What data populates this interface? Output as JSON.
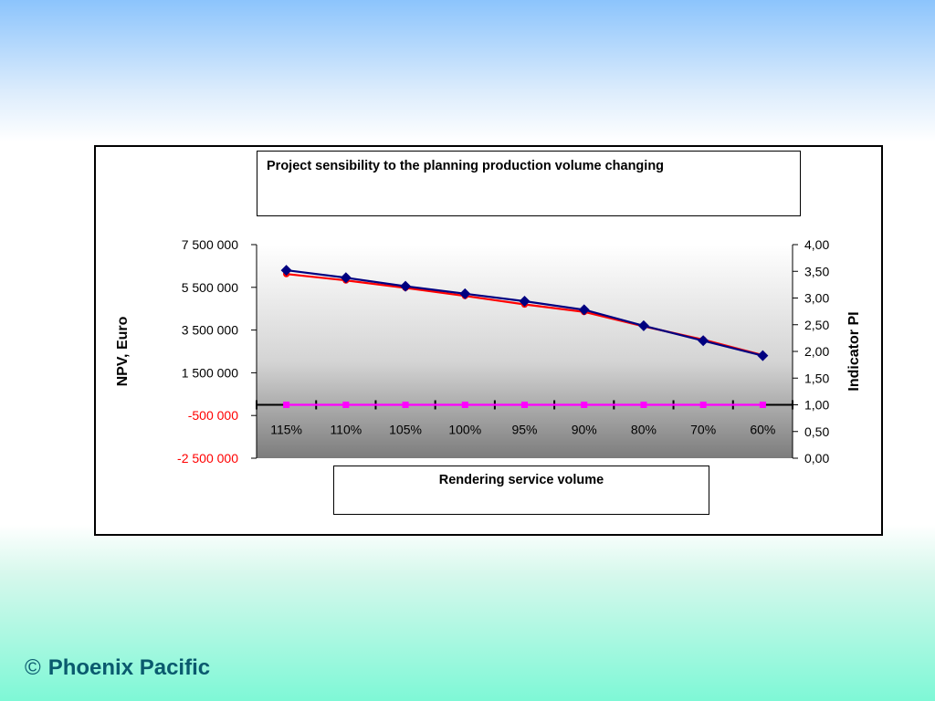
{
  "footer": {
    "symbol": "©",
    "brand": "Phoenix Pacific"
  },
  "chart_data": {
    "type": "line",
    "title": "Project sensibility to the planning production volume changing",
    "xlabel": "Rendering service volume",
    "ylabel_left": "NPV, Euro",
    "ylabel_right": "Indicator PI",
    "categories": [
      "115%",
      "110%",
      "105%",
      "100%",
      "95%",
      "90%",
      "80%",
      "70%",
      "60%"
    ],
    "y_left": {
      "lim": [
        -2500000,
        7500000
      ],
      "ticks": [
        7500000,
        5500000,
        3500000,
        1500000,
        -500000,
        -2500000
      ],
      "tick_labels": [
        "7 500 000",
        "5 500 000",
        "3 500 000",
        "1 500 000",
        "-500 000",
        "-2 500 000"
      ],
      "negative_color": "#ff0000"
    },
    "y_right": {
      "lim": [
        0,
        4
      ],
      "ticks": [
        4,
        3.5,
        3,
        2.5,
        2,
        1.5,
        1,
        0.5,
        0
      ],
      "tick_labels": [
        "4,00",
        "3,50",
        "3,00",
        "2,50",
        "2,00",
        "1,50",
        "1,00",
        "0,50",
        "0,00"
      ]
    },
    "series": [
      {
        "axis": "left",
        "color": "#000080",
        "marker": "diamond",
        "values": [
          6300000,
          5950000,
          5550000,
          5200000,
          4850000,
          4450000,
          3700000,
          3000000,
          2300000
        ]
      },
      {
        "axis": "right",
        "color": "#ff0000",
        "marker": "circle",
        "values": [
          3.45,
          3.33,
          3.19,
          3.04,
          2.88,
          2.74,
          2.47,
          2.22,
          1.93
        ]
      },
      {
        "axis": "right",
        "color": "#ff00ff",
        "marker": "square",
        "values": [
          1.0,
          1.0,
          1.0,
          1.0,
          1.0,
          1.0,
          1.0,
          1.0,
          1.0
        ]
      }
    ],
    "grid": false,
    "legend": "none"
  }
}
